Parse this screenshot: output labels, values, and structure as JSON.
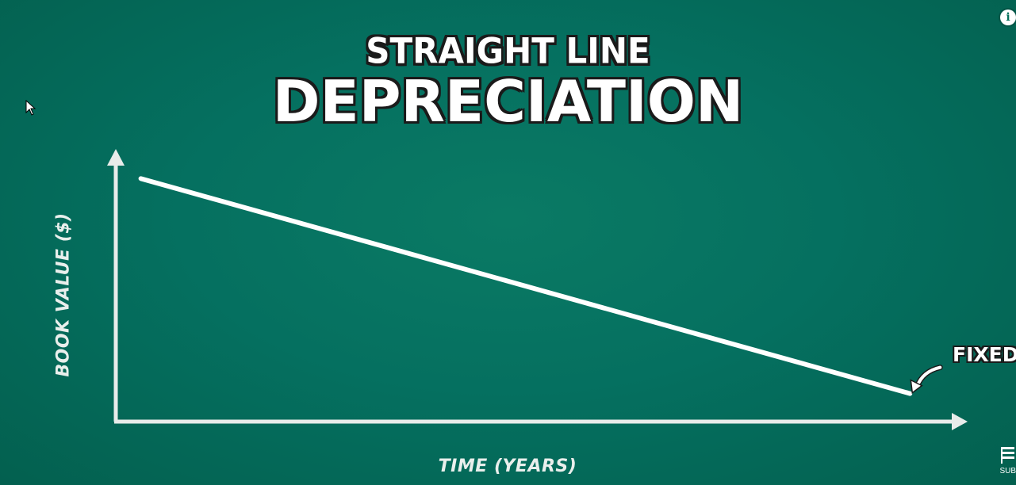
{
  "title_line1": "STRAIGHT LINE",
  "title_line2": "DEPRECIATION",
  "chart_data": {
    "type": "line",
    "title": "STRAIGHT LINE DEPRECIATION",
    "xlabel": "TIME (YEARS)",
    "ylabel": "BOOK VALUE ($)",
    "xlim": [
      0,
      10
    ],
    "ylim": [
      0,
      10
    ],
    "grid": false,
    "series": [
      {
        "x": [
          0.3,
          9.5
        ],
        "y": [
          9.1,
          1.05
        ]
      }
    ],
    "annotations": [
      {
        "text": "FIXED",
        "x": 9.5,
        "y": 1.05
      }
    ]
  },
  "overlays": {
    "info_icon": "info-icon",
    "cursor_icon": "cursor-icon",
    "subscribe_label": "SUB"
  },
  "colors": {
    "background": "#05705b",
    "line": "#ffffff",
    "text": "#ffffff"
  }
}
